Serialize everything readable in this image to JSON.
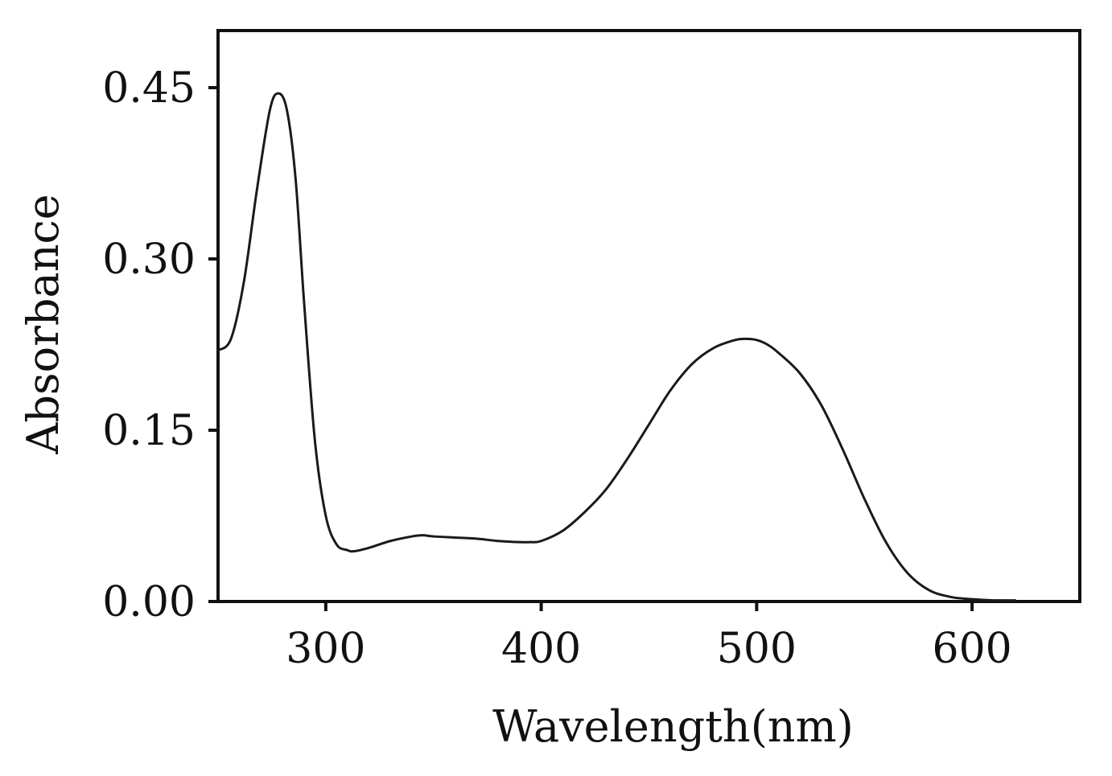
{
  "chart_data": {
    "type": "line",
    "title": "",
    "xlabel": "Wavelength(nm)",
    "ylabel": "Absorbance",
    "xlim": [
      250,
      650
    ],
    "ylim": [
      0,
      0.5
    ],
    "xticks": [
      300,
      400,
      500,
      600
    ],
    "xtick_labels": [
      "300",
      "400",
      "500",
      "600"
    ],
    "yticks": [
      0.0,
      0.15,
      0.3,
      0.45
    ],
    "ytick_labels": [
      "0.00",
      "0.15",
      "0.30",
      "0.45"
    ],
    "grid": false,
    "series": [
      {
        "x": [
          250,
          256,
          262,
          268,
          274,
          278,
          282,
          286,
          290,
          295,
          300,
          305,
          310,
          313,
          320,
          330,
          340,
          345,
          350,
          360,
          370,
          380,
          390,
          395,
          400,
          410,
          420,
          430,
          440,
          450,
          460,
          470,
          480,
          490,
          495,
          500,
          505,
          510,
          520,
          530,
          540,
          550,
          560,
          570,
          580,
          590,
          600,
          610,
          620
        ],
        "y": [
          0.22,
          0.23,
          0.28,
          0.36,
          0.43,
          0.445,
          0.43,
          0.37,
          0.26,
          0.14,
          0.075,
          0.05,
          0.045,
          0.044,
          0.047,
          0.053,
          0.057,
          0.058,
          0.057,
          0.056,
          0.055,
          0.053,
          0.052,
          0.052,
          0.053,
          0.062,
          0.078,
          0.098,
          0.125,
          0.155,
          0.185,
          0.208,
          0.222,
          0.229,
          0.23,
          0.229,
          0.225,
          0.218,
          0.2,
          0.172,
          0.133,
          0.09,
          0.052,
          0.025,
          0.01,
          0.004,
          0.002,
          0.001,
          0.001
        ]
      }
    ]
  }
}
